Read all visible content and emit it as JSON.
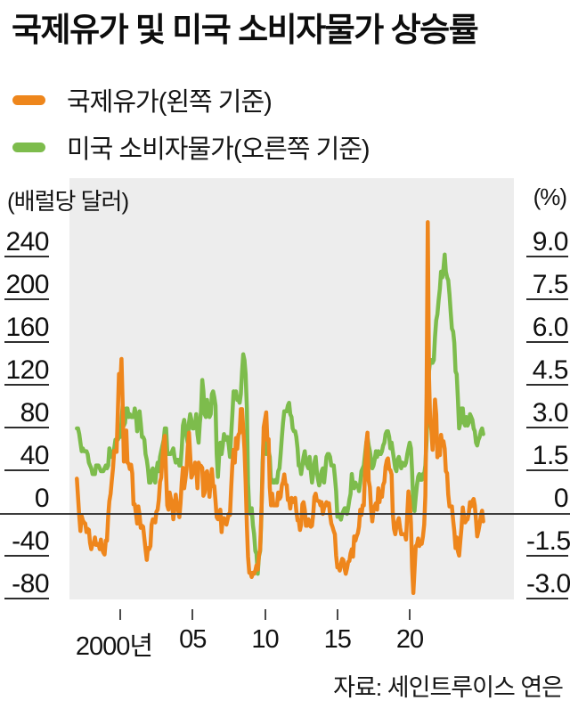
{
  "title": "국제유가 및 미국 소비자물가 상승률",
  "legend": {
    "items": [
      {
        "label": "국제유가(왼쪽 기준)",
        "color": "#EE861C"
      },
      {
        "label": "미국 소비자물가(오른쪽 기준)",
        "color": "#7DBC4C"
      }
    ]
  },
  "axes": {
    "left_unit": "(배럴당 달러)",
    "right_unit": "(%)",
    "left_ticks": [
      {
        "label": "240",
        "value": 240
      },
      {
        "label": "200",
        "value": 200
      },
      {
        "label": "160",
        "value": 160
      },
      {
        "label": "120",
        "value": 120
      },
      {
        "label": "80",
        "value": 80
      },
      {
        "label": "40",
        "value": 40
      },
      {
        "label": "0",
        "value": 0
      },
      {
        "label": "-40",
        "value": -40
      },
      {
        "label": "-80",
        "value": -80
      }
    ],
    "right_ticks": [
      {
        "label": "9.0",
        "value": 9.0
      },
      {
        "label": "7.5",
        "value": 7.5
      },
      {
        "label": "6.0",
        "value": 6.0
      },
      {
        "label": "4.5",
        "value": 4.5
      },
      {
        "label": "3.0",
        "value": 3.0
      },
      {
        "label": "1.5",
        "value": 1.5
      },
      {
        "label": "0",
        "value": 0
      },
      {
        "label": "-1.5",
        "value": -1.5
      },
      {
        "label": "-3.0",
        "value": -3.0
      }
    ],
    "x_ticks": [
      {
        "label": "2000년",
        "year": 2000,
        "label_dx": -7
      },
      {
        "label": "05",
        "year": 2005,
        "label_dx": 0
      },
      {
        "label": "10",
        "year": 2010,
        "label_dx": 0
      },
      {
        "label": "15",
        "year": 2015,
        "label_dx": 0
      },
      {
        "label": "20",
        "year": 2020,
        "label_dx": 0
      }
    ]
  },
  "source": "자료: 세인트루이스 연은",
  "colors": {
    "oil": "#EE861C",
    "cpi": "#7DBC4C",
    "plot_background": "#EDEDED",
    "zero_line": "#3C3C3C",
    "text": "#111111"
  },
  "chart_data": {
    "type": "line",
    "title": "국제유가 및 미국 소비자물가 상승률",
    "x_range_years": [
      1996.5,
      2027.2
    ],
    "left_axis": {
      "unit": "(배럴당 달러)",
      "min": -100,
      "max": 280,
      "ticks": [
        240,
        200,
        160,
        120,
        80,
        40,
        0,
        -40,
        -80
      ]
    },
    "right_axis": {
      "unit": "(%)",
      "min": -3.75,
      "max": 10.5,
      "ticks": [
        9.0,
        7.5,
        6.0,
        4.5,
        3.0,
        1.5,
        0,
        -1.5,
        -3.0
      ]
    },
    "grid": false,
    "legend_position": "top-left",
    "series": [
      {
        "id": "cpi",
        "name": "미국 소비자물가(오른쪽 기준)",
        "axis": "right",
        "color": "#7DBC4C",
        "start_year": 1997,
        "start_month": 1,
        "frequency": "monthly",
        "values": [
          3.0,
          3.0,
          2.8,
          2.5,
          2.2,
          2.3,
          2.2,
          2.2,
          2.2,
          2.1,
          1.8,
          1.7,
          1.6,
          1.4,
          1.4,
          1.4,
          1.7,
          1.7,
          1.7,
          1.6,
          1.5,
          1.5,
          1.5,
          1.6,
          1.7,
          1.6,
          1.7,
          2.3,
          2.1,
          2.0,
          2.1,
          2.3,
          2.6,
          2.6,
          2.6,
          2.7,
          2.7,
          3.2,
          3.8,
          3.1,
          3.2,
          3.7,
          3.7,
          3.4,
          3.5,
          3.4,
          3.4,
          3.4,
          3.7,
          3.5,
          2.9,
          3.3,
          3.6,
          3.2,
          2.7,
          2.7,
          2.6,
          2.1,
          1.9,
          1.6,
          1.1,
          1.1,
          1.5,
          1.6,
          1.2,
          1.1,
          1.5,
          1.8,
          1.5,
          2.0,
          2.2,
          2.4,
          2.6,
          3.0,
          3.0,
          2.2,
          2.1,
          2.1,
          2.1,
          2.2,
          2.3,
          2.0,
          1.8,
          1.9,
          1.9,
          1.7,
          1.7,
          2.3,
          3.1,
          3.3,
          3.0,
          2.7,
          2.5,
          3.2,
          3.5,
          3.3,
          3.0,
          3.0,
          3.1,
          3.5,
          2.8,
          2.5,
          3.2,
          3.6,
          4.7,
          4.3,
          3.5,
          3.4,
          4.0,
          3.6,
          3.4,
          3.5,
          4.2,
          4.3,
          4.1,
          3.8,
          2.1,
          1.3,
          2.0,
          2.5,
          2.1,
          2.4,
          2.8,
          2.6,
          2.7,
          2.7,
          2.4,
          2.0,
          2.8,
          3.5,
          4.3,
          4.1,
          4.3,
          4.0,
          4.0,
          3.9,
          4.2,
          5.0,
          5.6,
          5.4,
          4.9,
          3.7,
          1.1,
          0.1,
          0.0,
          0.2,
          -0.4,
          -0.7,
          -1.3,
          -1.4,
          -2.1,
          -1.5,
          -1.3,
          -0.2,
          1.8,
          2.7,
          2.6,
          2.1,
          2.3,
          2.2,
          2.0,
          1.1,
          1.2,
          1.1,
          1.1,
          1.2,
          1.1,
          1.5,
          1.6,
          2.1,
          2.7,
          3.2,
          3.6,
          3.6,
          3.6,
          3.8,
          3.9,
          3.5,
          3.4,
          3.0,
          2.9,
          2.9,
          2.7,
          2.3,
          1.7,
          1.7,
          1.4,
          1.7,
          2.0,
          2.2,
          1.8,
          1.7,
          1.6,
          2.0,
          1.5,
          1.1,
          1.4,
          1.8,
          2.0,
          1.5,
          1.2,
          1.0,
          1.2,
          1.5,
          1.6,
          1.1,
          1.5,
          2.0,
          2.1,
          2.1,
          2.0,
          1.7,
          1.7,
          1.7,
          1.3,
          0.8,
          -0.1,
          0.0,
          -0.1,
          -0.2,
          0.0,
          0.1,
          0.2,
          0.2,
          0.0,
          0.2,
          0.5,
          0.7,
          1.4,
          1.0,
          0.9,
          1.1,
          1.0,
          1.0,
          0.8,
          1.1,
          1.5,
          1.6,
          1.7,
          2.1,
          2.5,
          2.7,
          2.4,
          2.2,
          1.9,
          1.6,
          1.7,
          1.9,
          2.2,
          2.0,
          2.2,
          2.1,
          2.1,
          2.2,
          2.4,
          2.5,
          2.8,
          2.9,
          2.9,
          2.7,
          2.3,
          2.5,
          2.2,
          1.9,
          1.6,
          1.5,
          1.9,
          2.0,
          1.8,
          1.6,
          1.8,
          1.7,
          1.7,
          1.8,
          2.1,
          2.3,
          2.5,
          2.3,
          1.5,
          0.3,
          0.1,
          0.6,
          1.0,
          1.3,
          1.4,
          1.2,
          1.2,
          1.4,
          1.4,
          1.7,
          2.6,
          4.2,
          5.0,
          5.4,
          5.4,
          5.3,
          5.4,
          6.2,
          6.8,
          7.0,
          7.5,
          7.9,
          8.5,
          8.3,
          8.6,
          9.1,
          8.5,
          8.3,
          8.2,
          7.7,
          7.1,
          6.5,
          6.4,
          6.0,
          5.0,
          4.9,
          4.0,
          3.0,
          3.2,
          3.7,
          3.7,
          3.2,
          3.1,
          3.4,
          3.1,
          3.2,
          3.5,
          3.4,
          3.3,
          3.0,
          2.9,
          2.5,
          2.4,
          2.6,
          2.7,
          2.9,
          3.0,
          2.8
        ]
      },
      {
        "id": "oil",
        "name": "국제유가(왼쪽 기준)",
        "axis": "left",
        "color": "#EE861C",
        "start_year": 1997,
        "start_month": 1,
        "frequency": "monthly",
        "values": [
          33,
          16,
          -2,
          -16,
          -2,
          -6,
          -8,
          -9,
          -17,
          -14,
          -15,
          -27,
          -33,
          -28,
          -28,
          -22,
          -29,
          -29,
          -28,
          -33,
          -24,
          -33,
          -36,
          -38,
          -25,
          -25,
          -2,
          12,
          19,
          31,
          43,
          59,
          59,
          58,
          95,
          131,
          119,
          145,
          104,
          49,
          62,
          78,
          48,
          47,
          42,
          46,
          38,
          9,
          9,
          1,
          -9,
          7,
          -1,
          -13,
          -11,
          -12,
          -23,
          -33,
          -43,
          -32,
          -33,
          -30,
          -10,
          -5,
          -6,
          -8,
          2,
          4,
          13,
          30,
          34,
          52,
          67,
          73,
          37,
          8,
          4,
          20,
          14,
          11,
          -5,
          5,
          18,
          9,
          4,
          -3,
          10,
          30,
          43,
          24,
          32,
          42,
          62,
          76,
          56,
          34,
          37,
          39,
          48,
          44,
          24,
          48,
          45,
          45,
          43,
          17,
          20,
          38,
          40,
          28,
          16,
          31,
          42,
          26,
          26,
          12,
          -3,
          -5,
          1,
          4,
          -17,
          -4,
          -4,
          -8,
          -10,
          -5,
          0,
          -1,
          25,
          46,
          60,
          48,
          71,
          61,
          74,
          76,
          98,
          98,
          80,
          61,
          30,
          -11,
          -40,
          -55,
          -55,
          -59,
          -55,
          -56,
          -53,
          -48,
          -52,
          -39,
          -33,
          -1,
          36,
          81,
          88,
          95,
          69,
          70,
          25,
          8,
          19,
          8,
          8,
          8,
          8,
          20,
          14,
          16,
          27,
          30,
          37,
          28,
          27,
          13,
          14,
          5,
          15,
          11,
          12,
          15,
          3,
          -6,
          -6,
          -15,
          -10,
          9,
          11,
          4,
          -11,
          -11,
          -5,
          -7,
          -12,
          -11,
          0,
          16,
          19,
          13,
          12,
          12,
          8,
          11,
          0,
          6,
          8,
          11,
          8,
          10,
          -1,
          -9,
          -12,
          -16,
          -19,
          -39,
          -50,
          -50,
          -53,
          -47,
          -42,
          -43,
          -51,
          -56,
          -51,
          -45,
          -44,
          -37,
          -33,
          -40,
          -21,
          -25,
          -21,
          -18,
          -12,
          4,
          -1,
          8,
          8,
          40,
          66,
          76,
          31,
          25,
          4,
          -7,
          4,
          7,
          10,
          4,
          24,
          11,
          21,
          16,
          27,
          30,
          44,
          50,
          52,
          42,
          41,
          37,
          1,
          -14,
          -19,
          -12,
          -7,
          -4,
          -13,
          -19,
          -19,
          -19,
          -19,
          -24,
          0,
          21,
          12,
          -8,
          -50,
          -74,
          -53,
          -30,
          -29,
          -23,
          -30,
          -27,
          -28,
          -21,
          -10,
          17,
          113,
          273,
          128,
          86,
          78,
          60,
          81,
          107,
          93,
          53,
          60,
          55,
          74,
          65,
          68,
          61,
          40,
          38,
          18,
          7,
          7,
          7,
          -6,
          -16,
          -32,
          -22,
          -35,
          -39,
          -25,
          -13,
          6,
          -2,
          -8,
          -6,
          -5,
          1,
          11,
          7,
          12,
          14,
          8,
          -6,
          -21,
          -16,
          -10,
          -2,
          3,
          -7
        ]
      }
    ]
  }
}
